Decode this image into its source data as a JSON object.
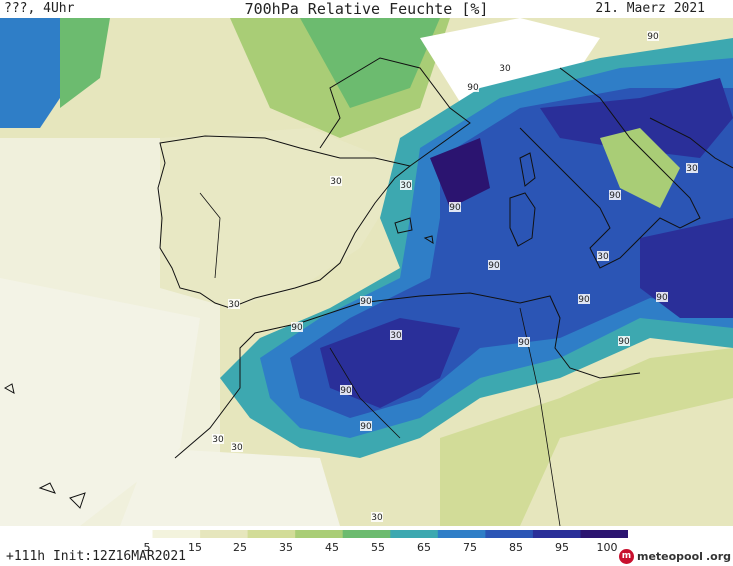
{
  "header": {
    "left": "???, 4Uhr",
    "title": "700hPa Relative Feuchte [%]",
    "date": "21. Maerz 2021"
  },
  "footer": {
    "run": "+111h  Init:12Z16MAR2021",
    "logo_text": "meteopool",
    "logo_suffix": ".org"
  },
  "colorbar": {
    "labels": [
      "5",
      "15",
      "25",
      "35",
      "45",
      "55",
      "65",
      "75",
      "85",
      "95",
      "100"
    ],
    "colors": [
      "#ffffff",
      "#f3f3dd",
      "#e6e6bd",
      "#d2dc98",
      "#a9cd76",
      "#6cbb6f",
      "#3da8b0",
      "#2f7ec7",
      "#2b55b5",
      "#2a2f99",
      "#2b1470"
    ]
  },
  "map_labels": [
    "90",
    "30",
    "90",
    "30",
    "30",
    "90",
    "90",
    "30",
    "90",
    "30",
    "90",
    "90",
    "90",
    "90",
    "30",
    "90",
    "90",
    "90",
    "90",
    "30",
    "30",
    "30",
    "30"
  ],
  "layers": {
    "land_color": "#f7f7f0",
    "coast_color": "#111111",
    "dry_color": "#f3f3dd",
    "moist_color": "#2f7ec7",
    "saturated_color": "#2a2f99"
  }
}
